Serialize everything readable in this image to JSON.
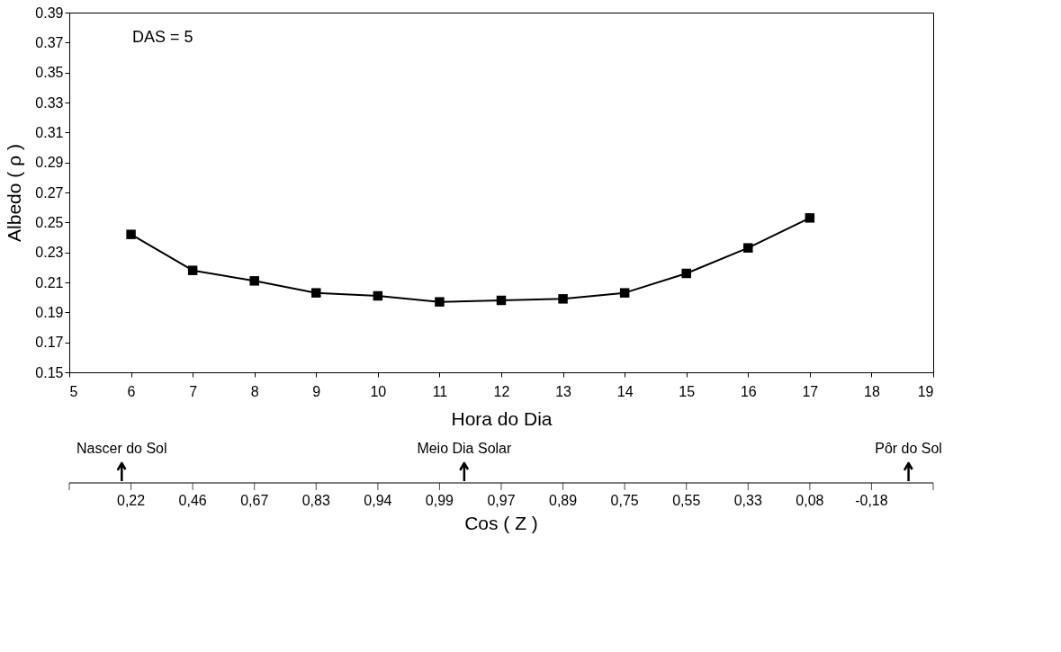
{
  "chart_data": {
    "type": "line",
    "xlabel": "Hora do Dia",
    "ylabel": "Albedo ( ρ )",
    "x": [
      6,
      7,
      8,
      9,
      10,
      11,
      12,
      13,
      14,
      15,
      16,
      17
    ],
    "series": [
      {
        "color": "#000000",
        "values": [
          0.242,
          0.218,
          0.211,
          0.203,
          0.201,
          0.197,
          0.198,
          0.199,
          0.203,
          0.216,
          0.233,
          0.253
        ]
      }
    ],
    "xlim": [
      5,
      19
    ],
    "xticks": [
      5,
      6,
      7,
      8,
      9,
      10,
      11,
      12,
      13,
      14,
      15,
      16,
      17,
      18,
      19
    ],
    "ylim": [
      0.15,
      0.39
    ],
    "yticks": [
      0.15,
      0.17,
      0.19,
      0.21,
      0.23,
      0.25,
      0.27,
      0.29,
      0.31,
      0.33,
      0.35,
      0.37,
      0.39
    ],
    "annotations": [
      "DAS = 5",
      "Nascer do Sol",
      "Meio Dia Solar",
      "Pôr do Sol",
      "0,22",
      "0,46",
      "0,67",
      "0,83",
      "0,94",
      "0,99",
      "0,97",
      "0,89",
      "0,75",
      "0,55",
      "0,33",
      "0,08",
      "-0,18",
      "Cos ( Z )"
    ],
    "marker": "square",
    "line_style": "solid",
    "grid": false
  }
}
